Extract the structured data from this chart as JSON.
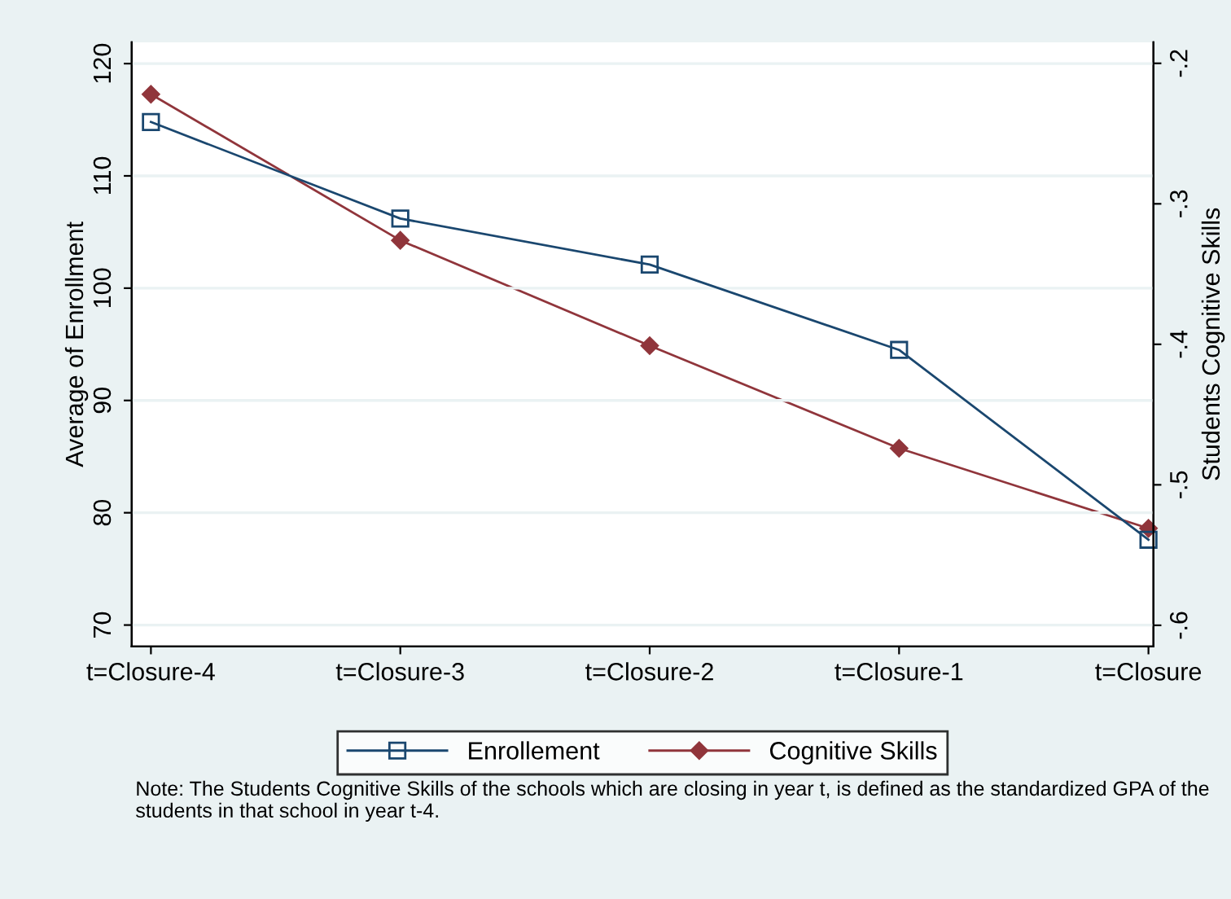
{
  "chart_data": {
    "type": "line",
    "categories": [
      "t=Closure-4",
      "t=Closure-3",
      "t=Closure-2",
      "t=Closure-1",
      "t=Closure"
    ],
    "series": [
      {
        "name": "Enrollement",
        "color": "#1a476f",
        "marker": "square",
        "values": [
          114.8,
          106.2,
          102.1,
          94.5,
          77.6
        ]
      },
      {
        "name": "Cognitive Skills",
        "color": "#90353b",
        "marker": "diamond",
        "axis": "y2",
        "values": [
          -0.222,
          -0.326,
          -0.401,
          -0.474,
          -0.531
        ]
      }
    ],
    "ylabel": "Average of Enrollment",
    "y2label": "Students Cognitive Skills",
    "ylim": [
      68.1,
      121.9
    ],
    "yticks": [
      70,
      80,
      90,
      100,
      110,
      120
    ],
    "y2lim": [
      -0.615,
      -0.185
    ],
    "y2ticks": [
      {
        "value": -0.6,
        "label": "-.6"
      },
      {
        "value": -0.5,
        "label": "-.5"
      },
      {
        "value": -0.4,
        "label": "-.4"
      },
      {
        "value": -0.3,
        "label": "-.3"
      },
      {
        "value": -0.2,
        "label": "-.2"
      }
    ],
    "grid": "y",
    "legend": "bottom",
    "line_style": "solid",
    "annotations": [
      "Note: The Students Cognitive Skills of the schools which are closing in year t, is defined as the standardized GPA of the students in that school in year t-4."
    ]
  }
}
